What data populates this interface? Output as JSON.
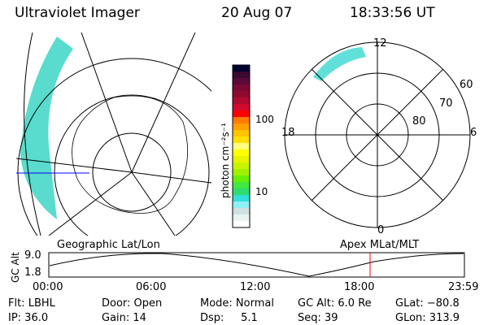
{
  "header": {
    "title": "Ultraviolet Imager",
    "date": "20 Aug 07",
    "time": "18:33:56 UT"
  },
  "colorbar": {
    "label": "photon cm⁻²s⁻¹",
    "ticks": [
      "100",
      "10"
    ],
    "colors": [
      "#000030",
      "#3a0a30",
      "#5a0a35",
      "#7a0a35",
      "#900a30",
      "#b00a30",
      "#d00a30",
      "#ff0000",
      "#ff7a00",
      "#ffa000",
      "#ffc400",
      "#ffe000",
      "#ffff80",
      "#ffff00",
      "#e8f400",
      "#c8f400",
      "#a0f000",
      "#68f000",
      "#40e840",
      "#30dc70",
      "#30e0d8",
      "#90f0f4",
      "#d0e0e0",
      "#e8f4ee",
      "#ffffff"
    ]
  },
  "polar": {
    "labels": {
      "top": "12",
      "bottom": "0",
      "left": "18",
      "right": "6"
    },
    "rings": [
      "60",
      "70",
      "80"
    ]
  },
  "plot": {
    "left_label": "Geographic Lat/Lon",
    "right_label": "Apex MLat/MLT",
    "ylabel": "GC Alt",
    "yticks": [
      "9.0",
      "1.8"
    ],
    "xticks": [
      "00:00",
      "06:00",
      "12:00",
      "18:00",
      "23:59"
    ],
    "marker_color": "#ff0000"
  },
  "status": {
    "row1": [
      "Flt: LBHL",
      "Door: Open",
      "Mode: Normal",
      "GC Alt: 6.0 Re",
      "GLat: −80.8"
    ],
    "row2": [
      "IP: 36.0",
      "Gain: 14",
      "Dsp:     5.1",
      "Seq: 39",
      "GLon: 313.9"
    ]
  }
}
